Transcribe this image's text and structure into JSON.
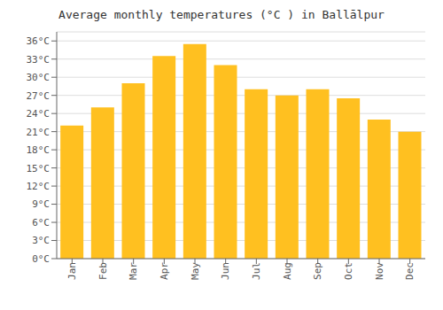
{
  "chart_data": {
    "type": "bar",
    "title": "Average monthly temperatures (°C ) in Ballālpur",
    "categories": [
      "Jan",
      "Feb",
      "Mar",
      "Apr",
      "May",
      "Jun",
      "Jul",
      "Aug",
      "Sep",
      "Oct",
      "Nov",
      "Dec"
    ],
    "values": [
      22.0,
      25.0,
      29.0,
      33.5,
      35.5,
      32.0,
      28.0,
      27.0,
      28.0,
      26.5,
      23.0,
      21.0
    ],
    "color": "#FFC020",
    "ylim": [
      0,
      37.5
    ],
    "yticks": [
      {
        "value": 0,
        "label": "0°C"
      },
      {
        "value": 3,
        "label": "3°C"
      },
      {
        "value": 6,
        "label": "6°C"
      },
      {
        "value": 9,
        "label": "9°C"
      },
      {
        "value": 12,
        "label": "12°C"
      },
      {
        "value": 15,
        "label": "15°C"
      },
      {
        "value": 18,
        "label": "18°C"
      },
      {
        "value": 21,
        "label": "21°C"
      },
      {
        "value": 24,
        "label": "24°C"
      },
      {
        "value": 27,
        "label": "27°C"
      },
      {
        "value": 30,
        "label": "30°C"
      },
      {
        "value": 33,
        "label": "33°C"
      },
      {
        "value": 36,
        "label": "36°C"
      }
    ],
    "grid": true
  }
}
